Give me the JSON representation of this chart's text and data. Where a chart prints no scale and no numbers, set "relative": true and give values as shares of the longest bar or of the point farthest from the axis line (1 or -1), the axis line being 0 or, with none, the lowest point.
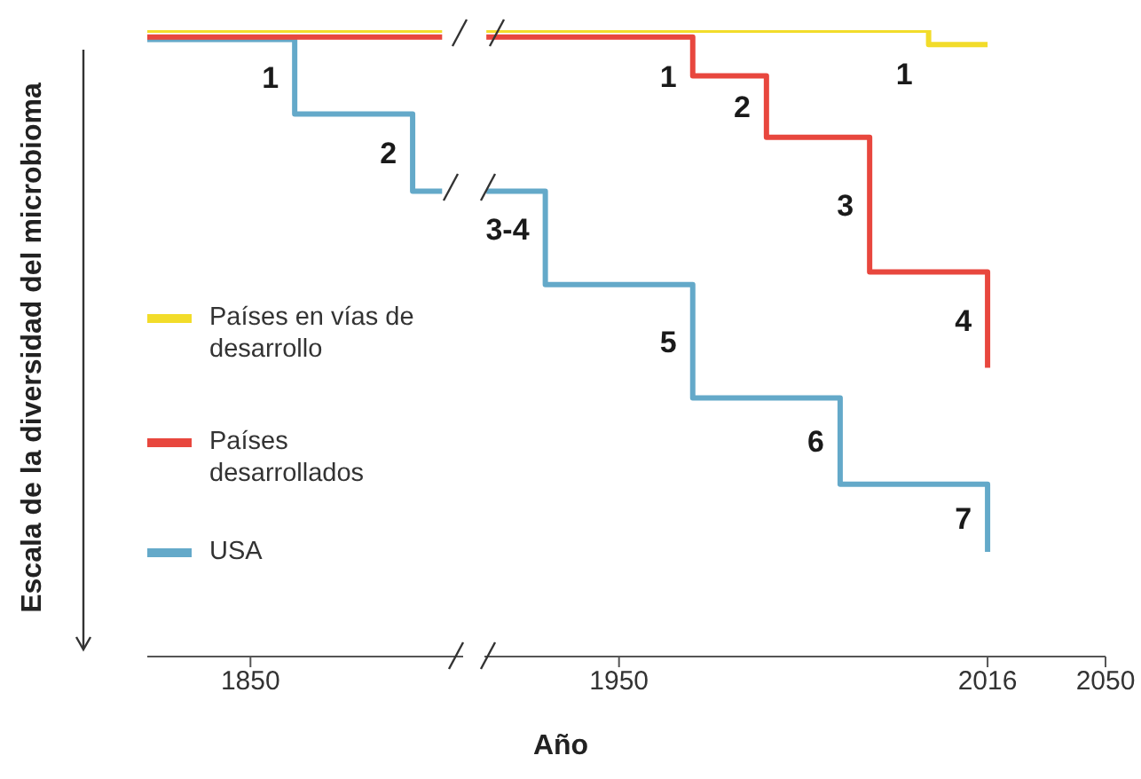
{
  "chart_data": {
    "type": "step",
    "relative": true,
    "xlabel": "Año",
    "ylabel": "Escala de la diversidad del microbioma",
    "legend": "left",
    "grid": false,
    "marker": "none",
    "line_style": "solid",
    "categories": [
      null,
      null,
      null,
      null,
      null,
      null,
      null,
      "1850",
      null,
      null,
      null,
      null,
      null,
      null,
      null,
      null,
      null,
      null,
      null,
      null,
      null,
      null,
      null,
      null,
      null,
      null,
      null,
      null,
      null,
      null,
      null,
      null,
      "1950",
      null,
      null,
      null,
      null,
      null,
      null,
      null,
      null,
      null,
      null,
      null,
      null,
      null,
      null,
      null,
      null,
      null,
      null,
      null,
      null,
      null,
      null,
      null,
      null,
      "2016",
      null,
      null,
      null,
      null,
      null,
      null,
      null,
      "2050"
    ],
    "series": [
      {
        "name": "Países en vías de desarrollo",
        "color": "#f2dc2a",
        "values": [
          1,
          1,
          1,
          1,
          1,
          1,
          1,
          1,
          1,
          1,
          1,
          1,
          1,
          1,
          1,
          1,
          1,
          1,
          1,
          1,
          1,
          null,
          null,
          1,
          1,
          1,
          1,
          1,
          1,
          1,
          1,
          1,
          1,
          1,
          1,
          1,
          1,
          1,
          1,
          1,
          1,
          1,
          1,
          1,
          1,
          1,
          1,
          1,
          1,
          1,
          1,
          1,
          1,
          0.977,
          0.977,
          0.977,
          0.977,
          0.977,
          null,
          null,
          null,
          null,
          null,
          null,
          null,
          null
        ]
      },
      {
        "name": "Países desarrollados",
        "color": "#e8473e",
        "values": [
          0.989,
          0.989,
          0.989,
          0.989,
          0.989,
          0.989,
          0.989,
          0.989,
          0.989,
          0.989,
          0.989,
          0.989,
          0.989,
          0.989,
          0.989,
          0.989,
          0.989,
          0.989,
          0.989,
          0.989,
          0.989,
          null,
          null,
          0.989,
          0.989,
          0.989,
          0.989,
          0.989,
          0.989,
          0.989,
          0.989,
          0.989,
          0.989,
          0.989,
          0.989,
          0.989,
          0.989,
          0.927,
          0.927,
          0.927,
          0.927,
          0.927,
          0.829,
          0.829,
          0.829,
          0.829,
          0.829,
          0.829,
          0.829,
          0.614,
          0.614,
          0.614,
          0.614,
          0.614,
          0.614,
          0.614,
          0.614,
          0.461,
          null,
          null,
          null,
          null,
          null,
          null,
          null,
          null
        ]
      },
      {
        "name": "USA",
        "color": "#64a9c9",
        "values": [
          0.985,
          0.985,
          0.985,
          0.985,
          0.985,
          0.985,
          0.985,
          0.985,
          0.985,
          0.985,
          0.866,
          0.866,
          0.866,
          0.866,
          0.866,
          0.866,
          0.866,
          0.866,
          0.743,
          0.743,
          0.743,
          null,
          null,
          0.743,
          0.743,
          0.743,
          0.743,
          0.594,
          0.594,
          0.594,
          0.594,
          0.594,
          0.594,
          0.594,
          0.594,
          0.594,
          0.594,
          0.413,
          0.413,
          0.413,
          0.413,
          0.413,
          0.413,
          0.413,
          0.413,
          0.413,
          0.413,
          0.275,
          0.275,
          0.275,
          0.275,
          0.275,
          0.275,
          0.275,
          0.275,
          0.275,
          0.275,
          0.167,
          null,
          null,
          null,
          null,
          null,
          null,
          null,
          null
        ]
      }
    ],
    "annotations": [
      "1",
      "2",
      "1",
      "1",
      "2",
      "3",
      "4",
      "3-4",
      "5",
      "6",
      "7"
    ]
  }
}
